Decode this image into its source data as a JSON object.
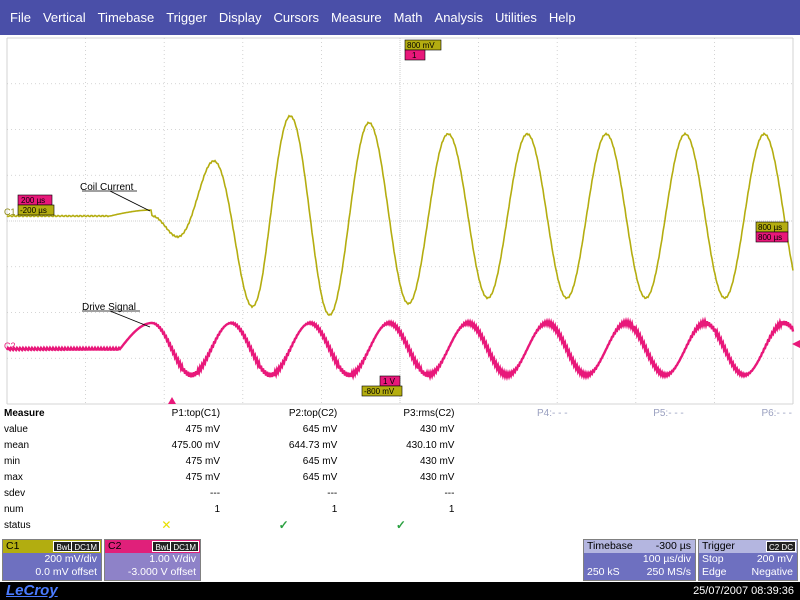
{
  "menu": [
    "File",
    "Vertical",
    "Timebase",
    "Trigger",
    "Display",
    "Cursors",
    "Measure",
    "Math",
    "Analysis",
    "Utilities",
    "Help"
  ],
  "display": {
    "trace_labels": {
      "c1": "Coil Current",
      "c2": "Drive Signal"
    },
    "channel_markers": {
      "c1": "C1",
      "c2": "C2"
    },
    "tags": {
      "top_level": "800 mV",
      "top_marker": "1",
      "c1_left_upper": "200 µs",
      "c1_left_lower": "-200 µs",
      "c1_right_upper": "800 µs",
      "c1_right_lower": "800 µs",
      "c2_bottom_upper": "1 V",
      "c2_bottom_lower": "-800 mV"
    },
    "colors": {
      "c1": "#b4ad10",
      "c2": "#e8187a",
      "grid": "#c8c8c8"
    }
  },
  "measure": {
    "title": "Measure",
    "columns": [
      "P1:top(C1)",
      "P2:top(C2)",
      "P3:rms(C2)",
      "P4:- - -",
      "P5:- - -",
      "P6:- - -"
    ],
    "rows": [
      {
        "label": "value",
        "values": [
          "475 mV",
          "645 mV",
          "430 mV"
        ]
      },
      {
        "label": "mean",
        "values": [
          "475.00 mV",
          "644.73 mV",
          "430.10 mV"
        ]
      },
      {
        "label": "min",
        "values": [
          "475 mV",
          "645 mV",
          "430 mV"
        ]
      },
      {
        "label": "max",
        "values": [
          "475 mV",
          "645 mV",
          "430 mV"
        ]
      },
      {
        "label": "sdev",
        "values": [
          "---",
          "---",
          "---"
        ]
      },
      {
        "label": "num",
        "values": [
          "1",
          "1",
          "1"
        ]
      }
    ],
    "status_label": "status",
    "status_icons": [
      "warning-cross",
      "check",
      "check"
    ]
  },
  "panels": {
    "c1": {
      "title": "C1",
      "tag1": "BwL",
      "tag2": "DC1M",
      "vdiv": "200 mV/div",
      "offset": "0.0 mV offset"
    },
    "c2": {
      "title": "C2",
      "tag1": "BwL",
      "tag2": "DC1M",
      "vdiv": "1.00 V/div",
      "offset": "-3.000 V offset"
    },
    "timebase": {
      "title": "Timebase",
      "delay": "-300 µs",
      "tdiv": "100 µs/div",
      "samples": "250 kS",
      "rate": "250 MS/s"
    },
    "trigger": {
      "title": "Trigger",
      "tag": "C2 DC",
      "mode": "Stop",
      "level": "200 mV",
      "type": "Edge",
      "slope": "Negative"
    }
  },
  "footer": {
    "brand": "LeCroy",
    "datetime": "25/07/2007 08:39:36"
  }
}
